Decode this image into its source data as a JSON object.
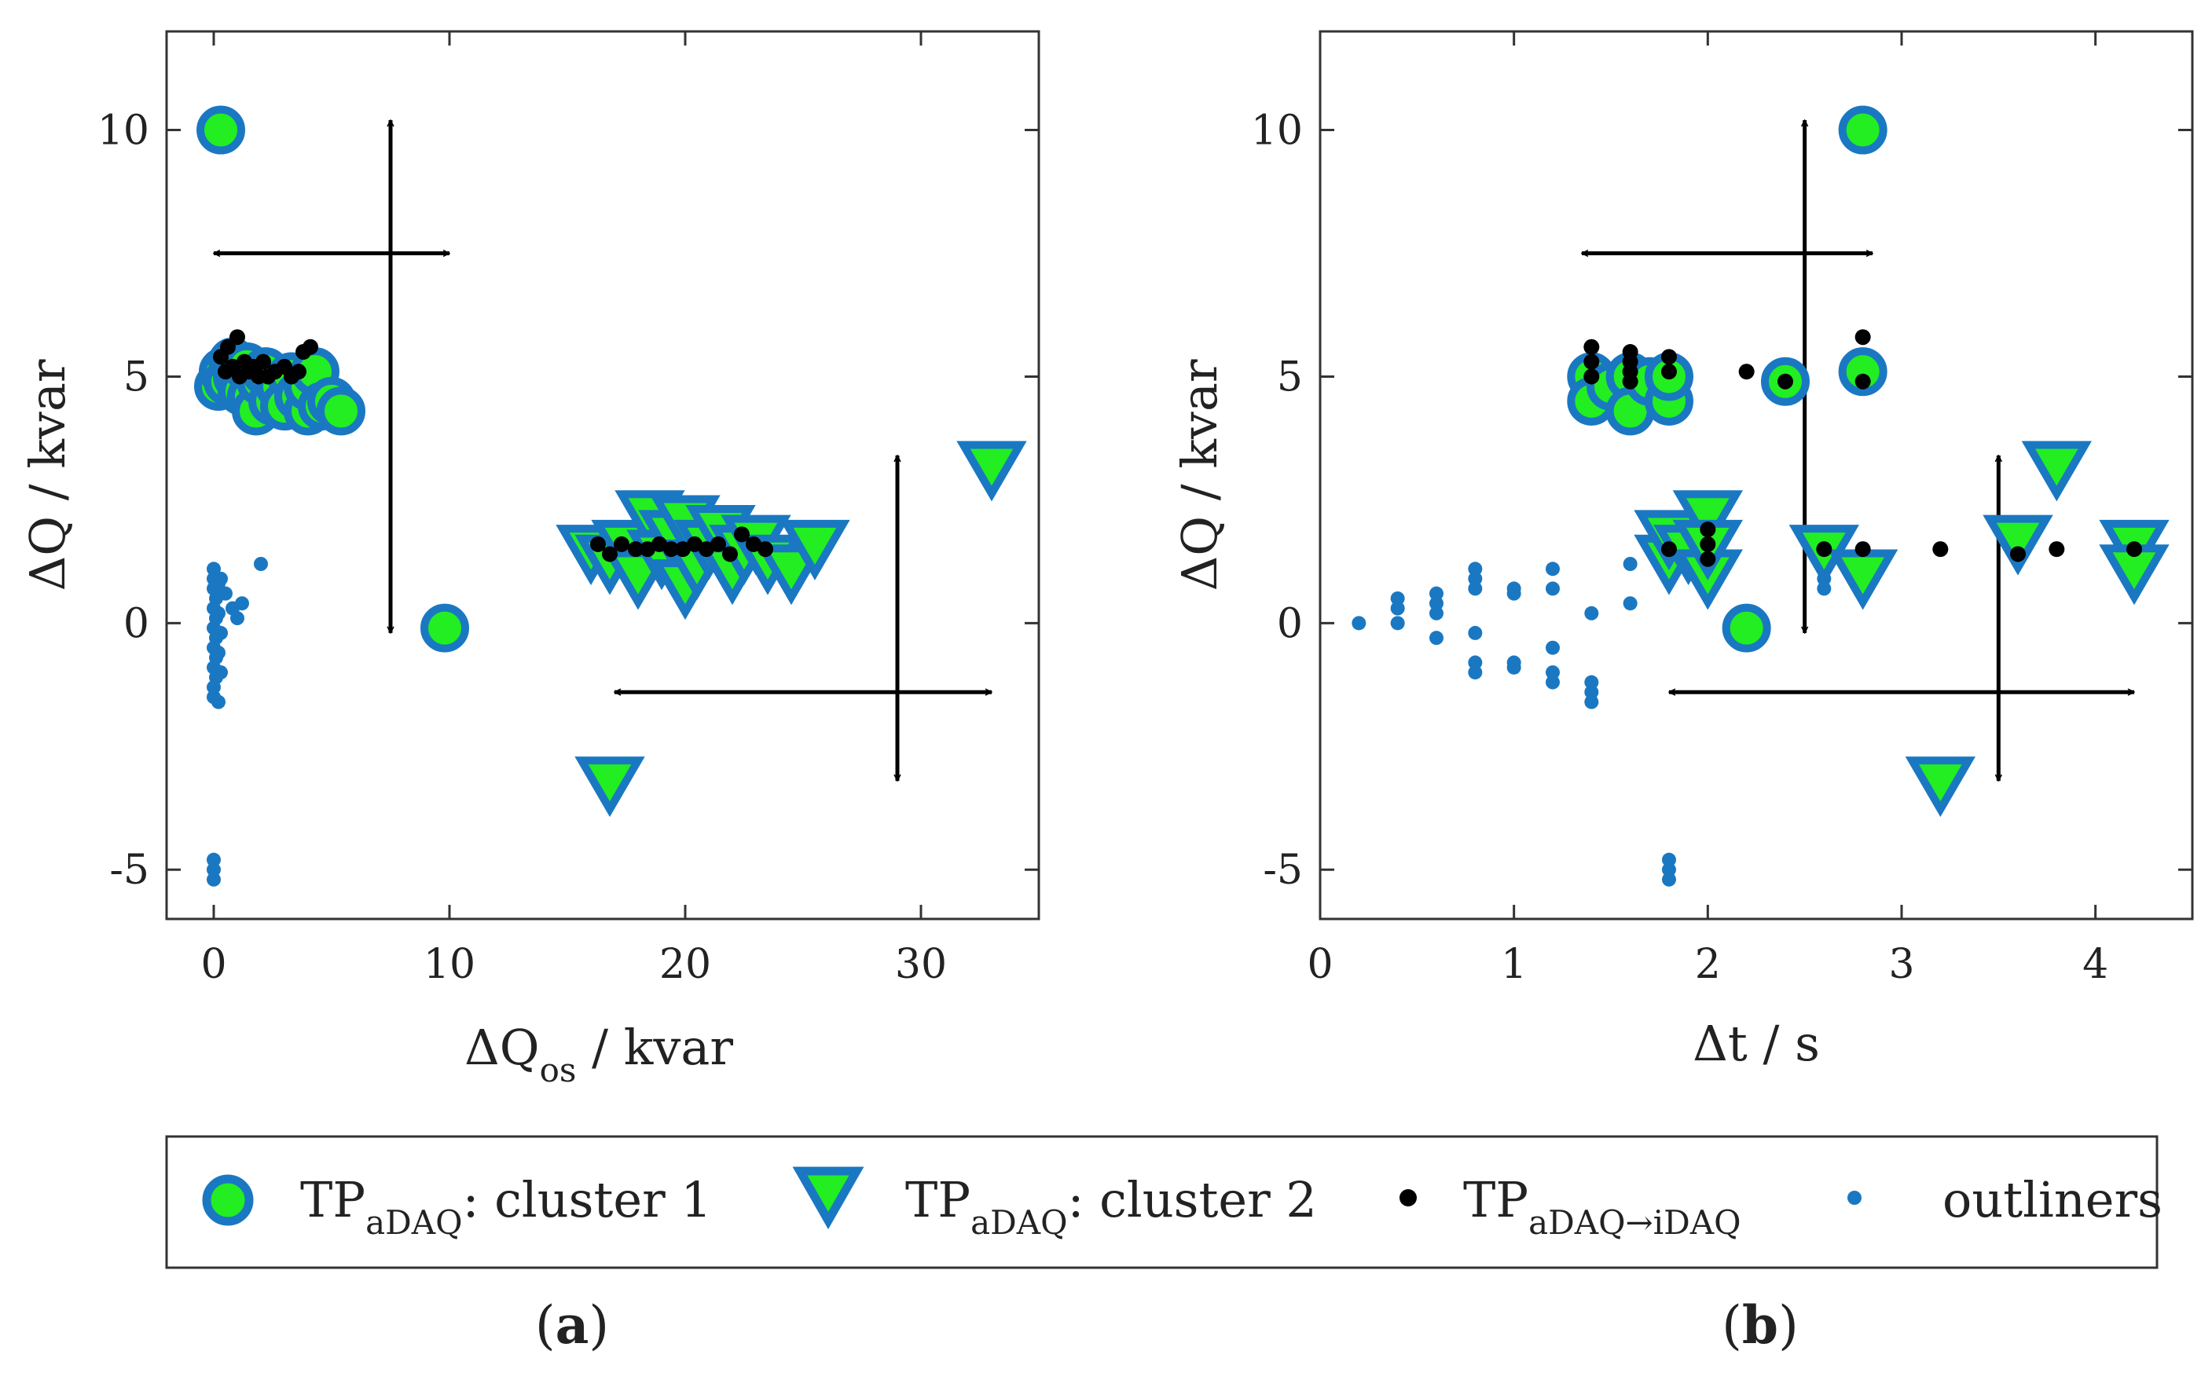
{
  "colors": {
    "cluster_fill": "#22ee22",
    "cluster_stroke": "#1a78c2",
    "transition": "#000000",
    "outliner": "#1a78c2",
    "arrow": "#000000",
    "axis": "#333333"
  },
  "legend": {
    "cluster1_main": "TP",
    "cluster1_sub": "aDAQ",
    "cluster1_rest": ": cluster 1",
    "cluster2_main": "TP",
    "cluster2_sub": "aDAQ",
    "cluster2_rest": ": cluster 2",
    "transition_main": "TP",
    "transition_sub": "aDAQ→iDAQ",
    "outliners": "outliners"
  },
  "panel_labels": {
    "a_open": "(",
    "a_letter": "a",
    "a_close": ")",
    "b_open": "(",
    "b_letter": "b",
    "b_close": ")"
  },
  "chart_data": [
    {
      "type": "scatter",
      "panel": "a",
      "xlabel_main": "ΔQ",
      "xlabel_sub": "os",
      "xlabel_rest": " / kvar",
      "ylabel": "ΔQ / kvar",
      "xlim": [
        -2,
        35
      ],
      "ylim": [
        -6,
        12
      ],
      "xticks": [
        0,
        10,
        20,
        30
      ],
      "yticks": [
        -5,
        0,
        5,
        10
      ],
      "series": [
        {
          "name": "TPaDAQ: cluster 1",
          "marker": "circle",
          "points": [
            [
              0.3,
              10.0
            ],
            [
              9.8,
              -0.1
            ],
            [
              0.2,
              4.8
            ],
            [
              0.4,
              5.1
            ],
            [
              0.6,
              4.9
            ],
            [
              0.8,
              5.3
            ],
            [
              1.0,
              5.0
            ],
            [
              1.2,
              4.7
            ],
            [
              1.4,
              5.2
            ],
            [
              1.6,
              4.6
            ],
            [
              1.8,
              4.3
            ],
            [
              2.0,
              4.9
            ],
            [
              2.2,
              5.1
            ],
            [
              2.5,
              4.5
            ],
            [
              2.8,
              4.8
            ],
            [
              3.0,
              4.4
            ],
            [
              3.3,
              5.0
            ],
            [
              3.6,
              4.6
            ],
            [
              4.0,
              4.3
            ],
            [
              4.0,
              4.8
            ],
            [
              4.3,
              5.1
            ],
            [
              4.6,
              4.4
            ],
            [
              5.0,
              4.5
            ],
            [
              5.4,
              4.3
            ]
          ]
        },
        {
          "name": "TPaDAQ: cluster 2",
          "marker": "triangle-down",
          "points": [
            [
              33.0,
              3.2
            ],
            [
              16.8,
              -3.2
            ],
            [
              16.0,
              1.5
            ],
            [
              16.8,
              1.3
            ],
            [
              17.5,
              1.6
            ],
            [
              18.0,
              1.0
            ],
            [
              18.5,
              2.2
            ],
            [
              19.0,
              1.4
            ],
            [
              19.5,
              1.8
            ],
            [
              20.0,
              0.8
            ],
            [
              20.0,
              2.1
            ],
            [
              20.5,
              1.2
            ],
            [
              21.0,
              1.6
            ],
            [
              21.5,
              1.9
            ],
            [
              22.0,
              1.1
            ],
            [
              22.5,
              1.5
            ],
            [
              23.0,
              1.7
            ],
            [
              23.5,
              1.3
            ],
            [
              24.5,
              1.1
            ],
            [
              25.5,
              1.6
            ]
          ]
        },
        {
          "name": "TPaDAQ→iDAQ",
          "marker": "dot",
          "points": [
            [
              0.3,
              5.4
            ],
            [
              0.5,
              5.1
            ],
            [
              0.6,
              5.6
            ],
            [
              0.8,
              5.2
            ],
            [
              1.0,
              5.8
            ],
            [
              1.1,
              5.0
            ],
            [
              1.3,
              5.3
            ],
            [
              1.5,
              5.1
            ],
            [
              1.7,
              5.2
            ],
            [
              1.9,
              5.0
            ],
            [
              2.1,
              5.3
            ],
            [
              2.3,
              5.0
            ],
            [
              2.6,
              5.1
            ],
            [
              3.0,
              5.2
            ],
            [
              3.3,
              5.0
            ],
            [
              3.6,
              5.1
            ],
            [
              3.8,
              5.5
            ],
            [
              4.1,
              5.6
            ],
            [
              16.3,
              1.6
            ],
            [
              16.8,
              1.4
            ],
            [
              17.3,
              1.6
            ],
            [
              17.9,
              1.5
            ],
            [
              18.4,
              1.5
            ],
            [
              18.9,
              1.6
            ],
            [
              19.4,
              1.5
            ],
            [
              19.9,
              1.5
            ],
            [
              20.4,
              1.6
            ],
            [
              20.9,
              1.5
            ],
            [
              21.4,
              1.6
            ],
            [
              21.9,
              1.4
            ],
            [
              22.4,
              1.8
            ],
            [
              22.9,
              1.6
            ],
            [
              23.4,
              1.5
            ]
          ]
        },
        {
          "name": "outliners",
          "marker": "small-dot",
          "points": [
            [
              0.0,
              1.1
            ],
            [
              0.0,
              0.9
            ],
            [
              0.0,
              0.7
            ],
            [
              0.1,
              0.5
            ],
            [
              0.0,
              0.3
            ],
            [
              0.1,
              0.1
            ],
            [
              0.0,
              -0.1
            ],
            [
              0.1,
              -0.3
            ],
            [
              0.0,
              -0.5
            ],
            [
              0.1,
              -0.7
            ],
            [
              0.0,
              -0.9
            ],
            [
              0.1,
              -1.1
            ],
            [
              0.0,
              -1.3
            ],
            [
              0.0,
              -1.5
            ],
            [
              0.2,
              0.8
            ],
            [
              0.2,
              0.2
            ],
            [
              0.2,
              -0.6
            ],
            [
              0.3,
              0.9
            ],
            [
              0.3,
              -0.2
            ],
            [
              0.3,
              -1.0
            ],
            [
              0.2,
              -1.6
            ],
            [
              0.0,
              -4.8
            ],
            [
              0.0,
              -5.0
            ],
            [
              0.0,
              -5.2
            ],
            [
              0.5,
              0.6
            ],
            [
              0.8,
              0.3
            ],
            [
              1.0,
              0.1
            ],
            [
              1.2,
              0.4
            ],
            [
              2.0,
              1.2
            ]
          ]
        }
      ],
      "arrows": [
        {
          "from": [
            0,
            7.5
          ],
          "to": [
            10,
            7.5
          ]
        },
        {
          "from": [
            7.5,
            10.2
          ],
          "to": [
            7.5,
            -0.2
          ]
        },
        {
          "from": [
            17,
            -1.4
          ],
          "to": [
            33,
            -1.4
          ]
        },
        {
          "from": [
            29,
            3.4
          ],
          "to": [
            29,
            -3.2
          ]
        }
      ]
    },
    {
      "type": "scatter",
      "panel": "b",
      "xlabel_main": "Δt / s",
      "ylabel": "ΔQ / kvar",
      "xlim": [
        0,
        4.5
      ],
      "ylim": [
        -6,
        12
      ],
      "xticks": [
        0,
        1,
        2,
        3,
        4
      ],
      "yticks": [
        -5,
        0,
        5,
        10
      ],
      "series": [
        {
          "name": "TPaDAQ: cluster 1",
          "marker": "circle",
          "points": [
            [
              2.8,
              10.0
            ],
            [
              1.4,
              5.0
            ],
            [
              1.4,
              4.5
            ],
            [
              1.5,
              4.8
            ],
            [
              1.6,
              5.0
            ],
            [
              1.6,
              4.3
            ],
            [
              1.7,
              4.9
            ],
            [
              1.8,
              4.5
            ],
            [
              1.8,
              5.0
            ],
            [
              2.4,
              4.9
            ],
            [
              2.8,
              5.1
            ],
            [
              2.2,
              -0.1
            ]
          ]
        },
        {
          "name": "TPaDAQ: cluster 2",
          "marker": "triangle-down",
          "points": [
            [
              3.8,
              3.2
            ],
            [
              3.2,
              -3.2
            ],
            [
              1.8,
              1.3
            ],
            [
              1.8,
              1.8
            ],
            [
              1.9,
              1.5
            ],
            [
              2.0,
              2.2
            ],
            [
              2.0,
              1.0
            ],
            [
              2.0,
              1.6
            ],
            [
              2.6,
              1.5
            ],
            [
              2.8,
              1.0
            ],
            [
              3.6,
              1.7
            ],
            [
              4.2,
              1.6
            ],
            [
              4.2,
              1.1
            ]
          ]
        },
        {
          "name": "TPaDAQ→iDAQ",
          "marker": "dot",
          "points": [
            [
              1.4,
              5.6
            ],
            [
              1.4,
              5.3
            ],
            [
              1.4,
              5.0
            ],
            [
              1.6,
              5.5
            ],
            [
              1.6,
              5.3
            ],
            [
              1.6,
              5.1
            ],
            [
              1.6,
              4.9
            ],
            [
              1.8,
              5.4
            ],
            [
              1.8,
              5.1
            ],
            [
              2.2,
              5.1
            ],
            [
              2.4,
              4.9
            ],
            [
              2.8,
              5.8
            ],
            [
              2.8,
              4.9
            ],
            [
              2.0,
              1.9
            ],
            [
              2.0,
              1.6
            ],
            [
              2.0,
              1.3
            ],
            [
              1.8,
              1.5
            ],
            [
              2.6,
              1.5
            ],
            [
              2.8,
              1.5
            ],
            [
              3.2,
              1.5
            ],
            [
              3.6,
              1.4
            ],
            [
              3.8,
              1.5
            ],
            [
              4.2,
              1.5
            ]
          ]
        },
        {
          "name": "outliners",
          "marker": "small-dot",
          "points": [
            [
              0.2,
              0.0
            ],
            [
              0.4,
              0.5
            ],
            [
              0.4,
              0.3
            ],
            [
              0.4,
              0.0
            ],
            [
              0.6,
              0.6
            ],
            [
              0.6,
              0.4
            ],
            [
              0.6,
              0.2
            ],
            [
              0.6,
              -0.3
            ],
            [
              0.8,
              1.1
            ],
            [
              0.8,
              0.9
            ],
            [
              0.8,
              0.7
            ],
            [
              0.8,
              -0.2
            ],
            [
              0.8,
              -0.8
            ],
            [
              0.8,
              -1.0
            ],
            [
              1.0,
              0.7
            ],
            [
              1.0,
              0.6
            ],
            [
              1.0,
              -0.8
            ],
            [
              1.0,
              -0.9
            ],
            [
              1.2,
              1.1
            ],
            [
              1.2,
              0.7
            ],
            [
              1.2,
              -0.5
            ],
            [
              1.2,
              -1.0
            ],
            [
              1.2,
              -1.2
            ],
            [
              1.4,
              0.2
            ],
            [
              1.4,
              -1.2
            ],
            [
              1.4,
              -1.4
            ],
            [
              1.4,
              -1.6
            ],
            [
              1.6,
              1.2
            ],
            [
              1.6,
              0.4
            ],
            [
              1.8,
              -4.8
            ],
            [
              1.8,
              -5.0
            ],
            [
              1.8,
              -5.2
            ],
            [
              2.6,
              0.7
            ],
            [
              2.6,
              0.9
            ]
          ]
        }
      ],
      "arrows": [
        {
          "from": [
            1.35,
            7.5
          ],
          "to": [
            2.85,
            7.5
          ]
        },
        {
          "from": [
            2.5,
            10.2
          ],
          "to": [
            2.5,
            -0.2
          ]
        },
        {
          "from": [
            1.8,
            -1.4
          ],
          "to": [
            4.2,
            -1.4
          ]
        },
        {
          "from": [
            3.5,
            3.4
          ],
          "to": [
            3.5,
            -3.2
          ]
        }
      ]
    }
  ]
}
